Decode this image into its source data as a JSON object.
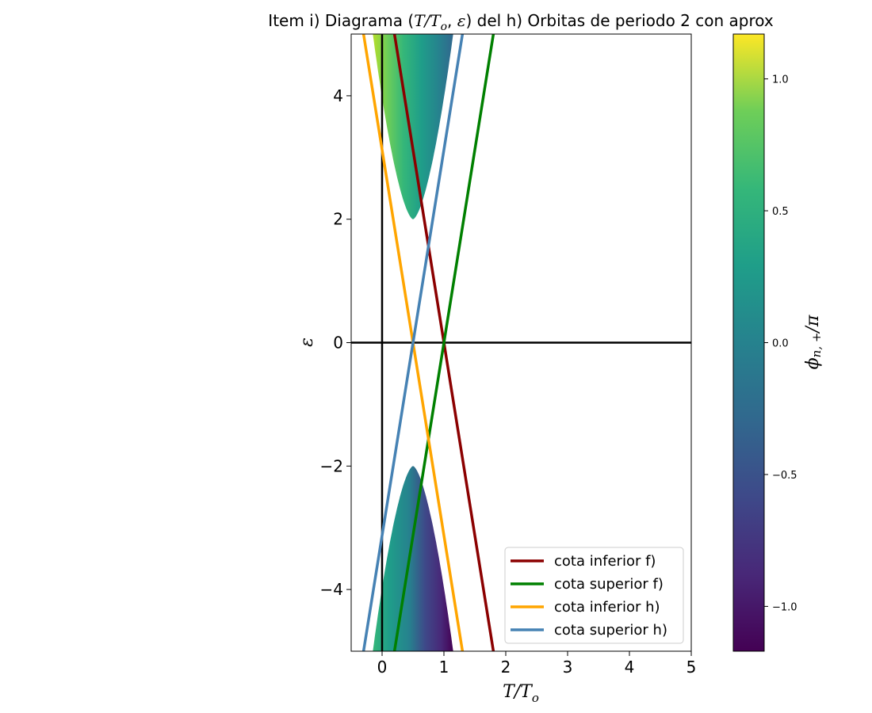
{
  "chart_data": {
    "type": "line",
    "title": "Item i) Diagrama (T/T_o, ε) del h) Orbitas de periodo 2 con aprox",
    "title_parts": {
      "pre": "Item i) Diagrama (",
      "var1": "T/T",
      "var1_sub": "o",
      "sep": ", ",
      "var2": "ε",
      "post": ") del h) Orbitas de periodo 2 con aprox"
    },
    "xlabel": {
      "main": "T/T",
      "sub": "o"
    },
    "ylabel": "ε",
    "xlim": [
      -0.5,
      5
    ],
    "ylim": [
      -5,
      5
    ],
    "xticks": [
      0,
      1,
      2,
      3,
      4,
      5
    ],
    "xtick_labels": [
      "0",
      "1",
      "2",
      "3",
      "4",
      "5"
    ],
    "yticks": [
      -4,
      -2,
      0,
      2,
      4
    ],
    "ytick_labels": [
      "−4",
      "−2",
      "0",
      "2",
      "4"
    ],
    "reference_lines": {
      "x": 0,
      "y": 0,
      "color": "#000000"
    },
    "series": [
      {
        "name": "cota inferior f)",
        "color": "#8b0000",
        "x": [
          0.2,
          1.8
        ],
        "y": [
          5,
          -5
        ]
      },
      {
        "name": "cota superior f)",
        "color": "#008000",
        "x": [
          0.2,
          1.8
        ],
        "y": [
          -5,
          5
        ]
      },
      {
        "name": "cota inferior h)",
        "color": "#ffa500",
        "x": [
          -0.3,
          1.3
        ],
        "y": [
          5,
          -5
        ]
      },
      {
        "name": "cota superior h)",
        "color": "#4682b4",
        "x": [
          -0.3,
          1.3
        ],
        "y": [
          -5,
          5
        ]
      }
    ],
    "stability_regions": [
      {
        "region": "upper",
        "vertex_x": 0.5,
        "vertex_y": 2,
        "x_range": [
          -0.15,
          1.15
        ],
        "y_range": [
          2,
          5
        ]
      },
      {
        "region": "lower",
        "vertex_x": 0.5,
        "vertex_y": -2,
        "x_range": [
          -0.15,
          1.15
        ],
        "y_range": [
          -5,
          -2
        ]
      }
    ],
    "legend_position": "lower right",
    "colorbar": {
      "label_main": "ϕ",
      "label_sub": "n, +",
      "label_post": "/π",
      "colormap": "viridis",
      "range": [
        -1.17,
        1.17
      ],
      "ticks": [
        -1.0,
        -0.5,
        0.0,
        0.5,
        1.0
      ],
      "tick_labels": [
        "−1.0",
        "−0.5",
        "0.0",
        "0.5",
        "1.0"
      ]
    }
  }
}
